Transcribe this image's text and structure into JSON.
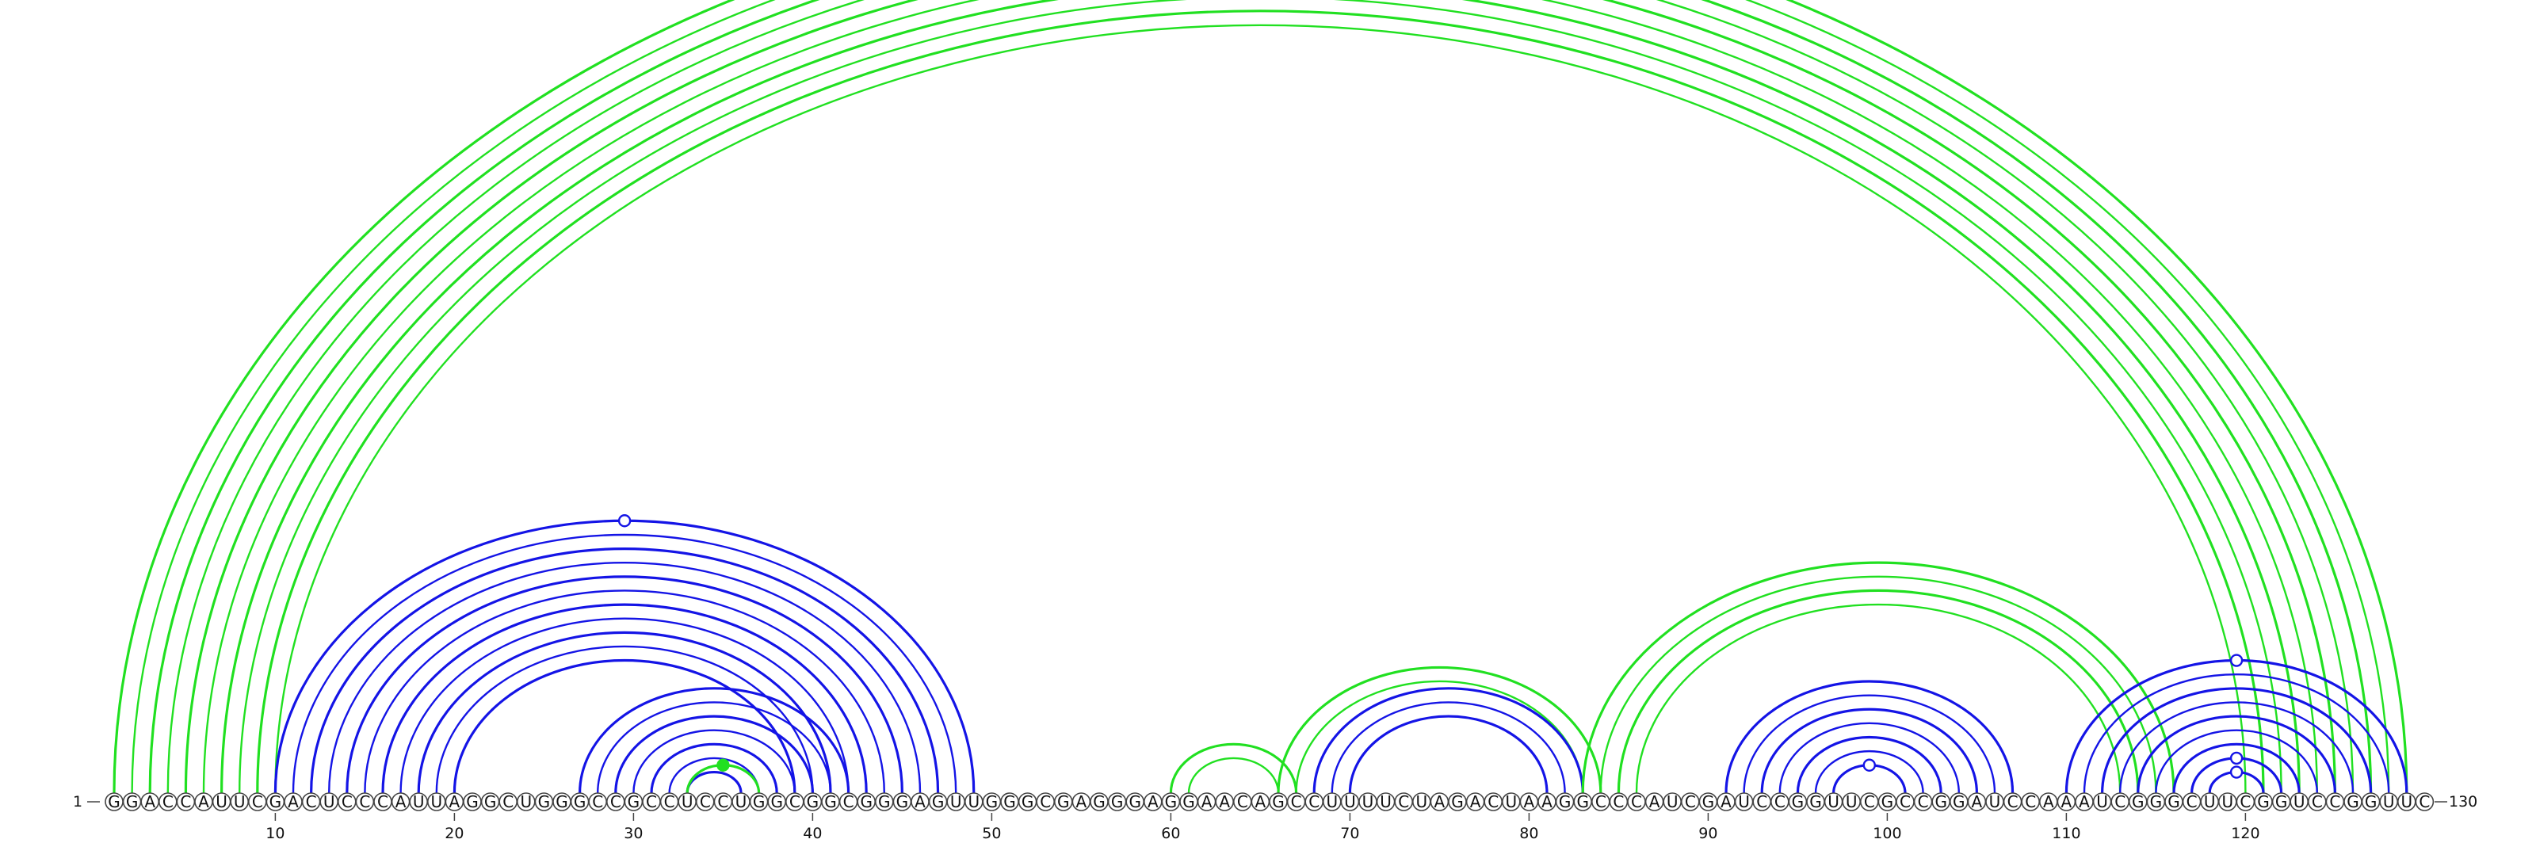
{
  "diagram": {
    "sequence": "GGACCAUUCGACUCCCAUUAGGCUGGGCCGCCUCCUGGCGGCGGGAGUUGGGCGAGGGAGGAACAGCCUUUUCUAGACUAAGGCCCAUCGAUCCGGUUCGCCGGAUCCAAAUCGGGCUUCGGUCCGGUUC",
    "start_label": "1",
    "end_label": "130",
    "ticks": [
      "10",
      "20",
      "30",
      "40",
      "50",
      "60",
      "70",
      "80",
      "90",
      "100",
      "110",
      "120"
    ],
    "colors": {
      "green": "#21e021",
      "blue": "#1414e6",
      "outline": "#444444"
    },
    "arc_groups": [
      {
        "color": "green",
        "pairs": [
          [
            1,
            129
          ],
          [
            2,
            128
          ],
          [
            3,
            127
          ],
          [
            4,
            126
          ],
          [
            5,
            125
          ],
          [
            6,
            124
          ],
          [
            7,
            123
          ],
          [
            8,
            122
          ],
          [
            9,
            121
          ],
          [
            10,
            120
          ]
        ],
        "marker": {
          "type": "hollow",
          "pair": [
            1,
            129
          ]
        }
      },
      {
        "color": "blue",
        "pairs": [
          [
            10,
            49
          ],
          [
            11,
            48
          ],
          [
            12,
            47
          ],
          [
            13,
            46
          ],
          [
            14,
            45
          ],
          [
            15,
            44
          ],
          [
            16,
            43
          ],
          [
            17,
            42
          ],
          [
            18,
            41
          ],
          [
            19,
            40
          ],
          [
            20,
            39
          ]
        ],
        "marker": {
          "type": "hollow",
          "pair": [
            10,
            49
          ]
        }
      },
      {
        "color": "blue",
        "pairs": [
          [
            27,
            42
          ],
          [
            28,
            41
          ],
          [
            29,
            40
          ],
          [
            30,
            39
          ],
          [
            31,
            38
          ],
          [
            32,
            37
          ],
          [
            33,
            36
          ]
        ],
        "marker": null
      },
      {
        "color": "green",
        "pairs": [
          [
            33,
            37
          ]
        ],
        "marker": {
          "type": "filled",
          "pair": [
            33,
            37
          ]
        }
      },
      {
        "color": "green",
        "pairs": [
          [
            60,
            67
          ],
          [
            61,
            66
          ]
        ],
        "marker": null
      },
      {
        "color": "green",
        "pairs": [
          [
            66,
            84
          ],
          [
            67,
            83
          ]
        ],
        "marker": null
      },
      {
        "color": "blue",
        "pairs": [
          [
            68,
            83
          ],
          [
            69,
            82
          ],
          [
            70,
            81
          ]
        ],
        "marker": null
      },
      {
        "color": "green",
        "pairs": [
          [
            83,
            116
          ],
          [
            84,
            115
          ],
          [
            85,
            114
          ],
          [
            86,
            113
          ]
        ],
        "marker": null
      },
      {
        "color": "blue",
        "pairs": [
          [
            91,
            107
          ],
          [
            92,
            106
          ],
          [
            93,
            105
          ],
          [
            94,
            104
          ],
          [
            95,
            103
          ],
          [
            96,
            102
          ],
          [
            97,
            101
          ]
        ],
        "marker": {
          "type": "hollow",
          "pair": [
            97,
            101
          ]
        }
      },
      {
        "color": "blue",
        "pairs": [
          [
            110,
            129
          ],
          [
            111,
            128
          ],
          [
            112,
            127
          ],
          [
            113,
            126
          ],
          [
            114,
            125
          ],
          [
            115,
            124
          ],
          [
            116,
            123
          ]
        ],
        "marker": {
          "type": "hollow",
          "pair": [
            110,
            129
          ]
        }
      },
      {
        "color": "blue",
        "pairs": [
          [
            117,
            122
          ],
          [
            118,
            121
          ]
        ],
        "marker": {
          "type": "hollow",
          "pair": [
            117,
            122
          ]
        }
      },
      {
        "color": "blue",
        "pairs": [
          [
            118,
            121
          ]
        ],
        "marker": {
          "type": "hollow",
          "pair": [
            118,
            121
          ]
        }
      }
    ]
  }
}
